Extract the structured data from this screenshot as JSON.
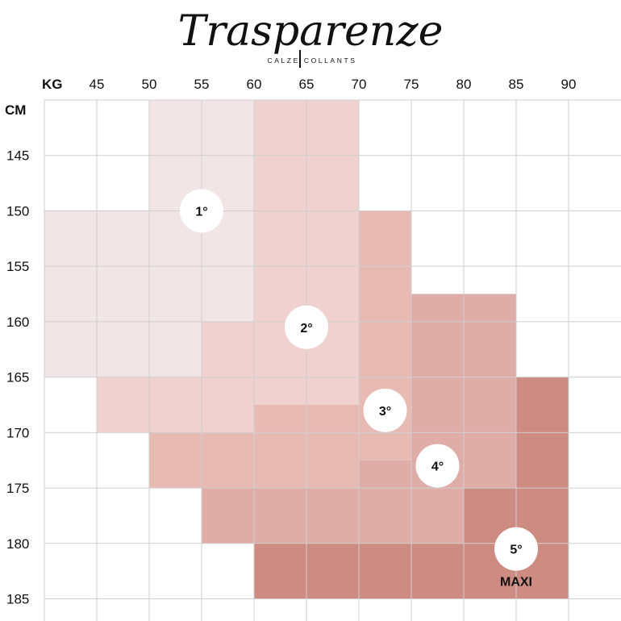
{
  "brand": {
    "name": "Trasparenze",
    "subtitle": "CALZE COLLANTS"
  },
  "chart_data": {
    "type": "heatmap",
    "title": "",
    "x_unit": "KG",
    "y_unit": "CM",
    "x_ticks": [
      45,
      50,
      55,
      60,
      65,
      70,
      75,
      80,
      85,
      90
    ],
    "y_ticks": [
      145,
      150,
      155,
      160,
      165,
      170,
      175,
      180,
      185
    ],
    "x_range": [
      40,
      95
    ],
    "y_range": [
      140,
      187
    ],
    "grid": true,
    "sizes": [
      {
        "label": "1°",
        "color": "#f1e6e5",
        "label_at": {
          "kg": 55,
          "cm": 150
        },
        "regions": [
          {
            "kg": [
              50,
              60
            ],
            "cm": [
              140,
              160
            ]
          },
          {
            "kg": [
              40,
              60
            ],
            "cm": [
              150,
              165
            ]
          }
        ]
      },
      {
        "label": "2°",
        "color": "#efd2cf",
        "label_at": {
          "kg": 65,
          "cm": 160.5
        },
        "regions": [
          {
            "kg": [
              60,
              70
            ],
            "cm": [
              140,
              167.5
            ]
          },
          {
            "kg": [
              55,
              60
            ],
            "cm": [
              160,
              170
            ]
          },
          {
            "kg": [
              45,
              55
            ],
            "cm": [
              165,
              170
            ]
          }
        ]
      },
      {
        "label": "3°",
        "color": "#e8bab4",
        "label_at": {
          "kg": 72.5,
          "cm": 168
        },
        "regions": [
          {
            "kg": [
              70,
              75
            ],
            "cm": [
              150,
              172.5
            ]
          },
          {
            "kg": [
              60,
              70
            ],
            "cm": [
              167.5,
              175
            ]
          },
          {
            "kg": [
              50,
              60
            ],
            "cm": [
              170,
              175
            ]
          }
        ]
      },
      {
        "label": "4°",
        "color": "#dfaca8",
        "label_at": {
          "kg": 77.5,
          "cm": 173
        },
        "regions": [
          {
            "kg": [
              75,
              85
            ],
            "cm": [
              157.5,
              175
            ]
          },
          {
            "kg": [
              70,
              75
            ],
            "cm": [
              172.5,
              175
            ]
          },
          {
            "kg": [
              55,
              80
            ],
            "cm": [
              175,
              180
            ]
          }
        ]
      },
      {
        "label": "5°",
        "sublabel": "MAXI",
        "color": "#cd8b81",
        "label_at": {
          "kg": 85,
          "cm": 180.5
        },
        "regions": [
          {
            "kg": [
              85,
              90
            ],
            "cm": [
              165,
              175
            ]
          },
          {
            "kg": [
              80,
              90
            ],
            "cm": [
              175,
              180
            ]
          },
          {
            "kg": [
              60,
              90
            ],
            "cm": [
              180,
              185
            ]
          }
        ]
      }
    ]
  }
}
